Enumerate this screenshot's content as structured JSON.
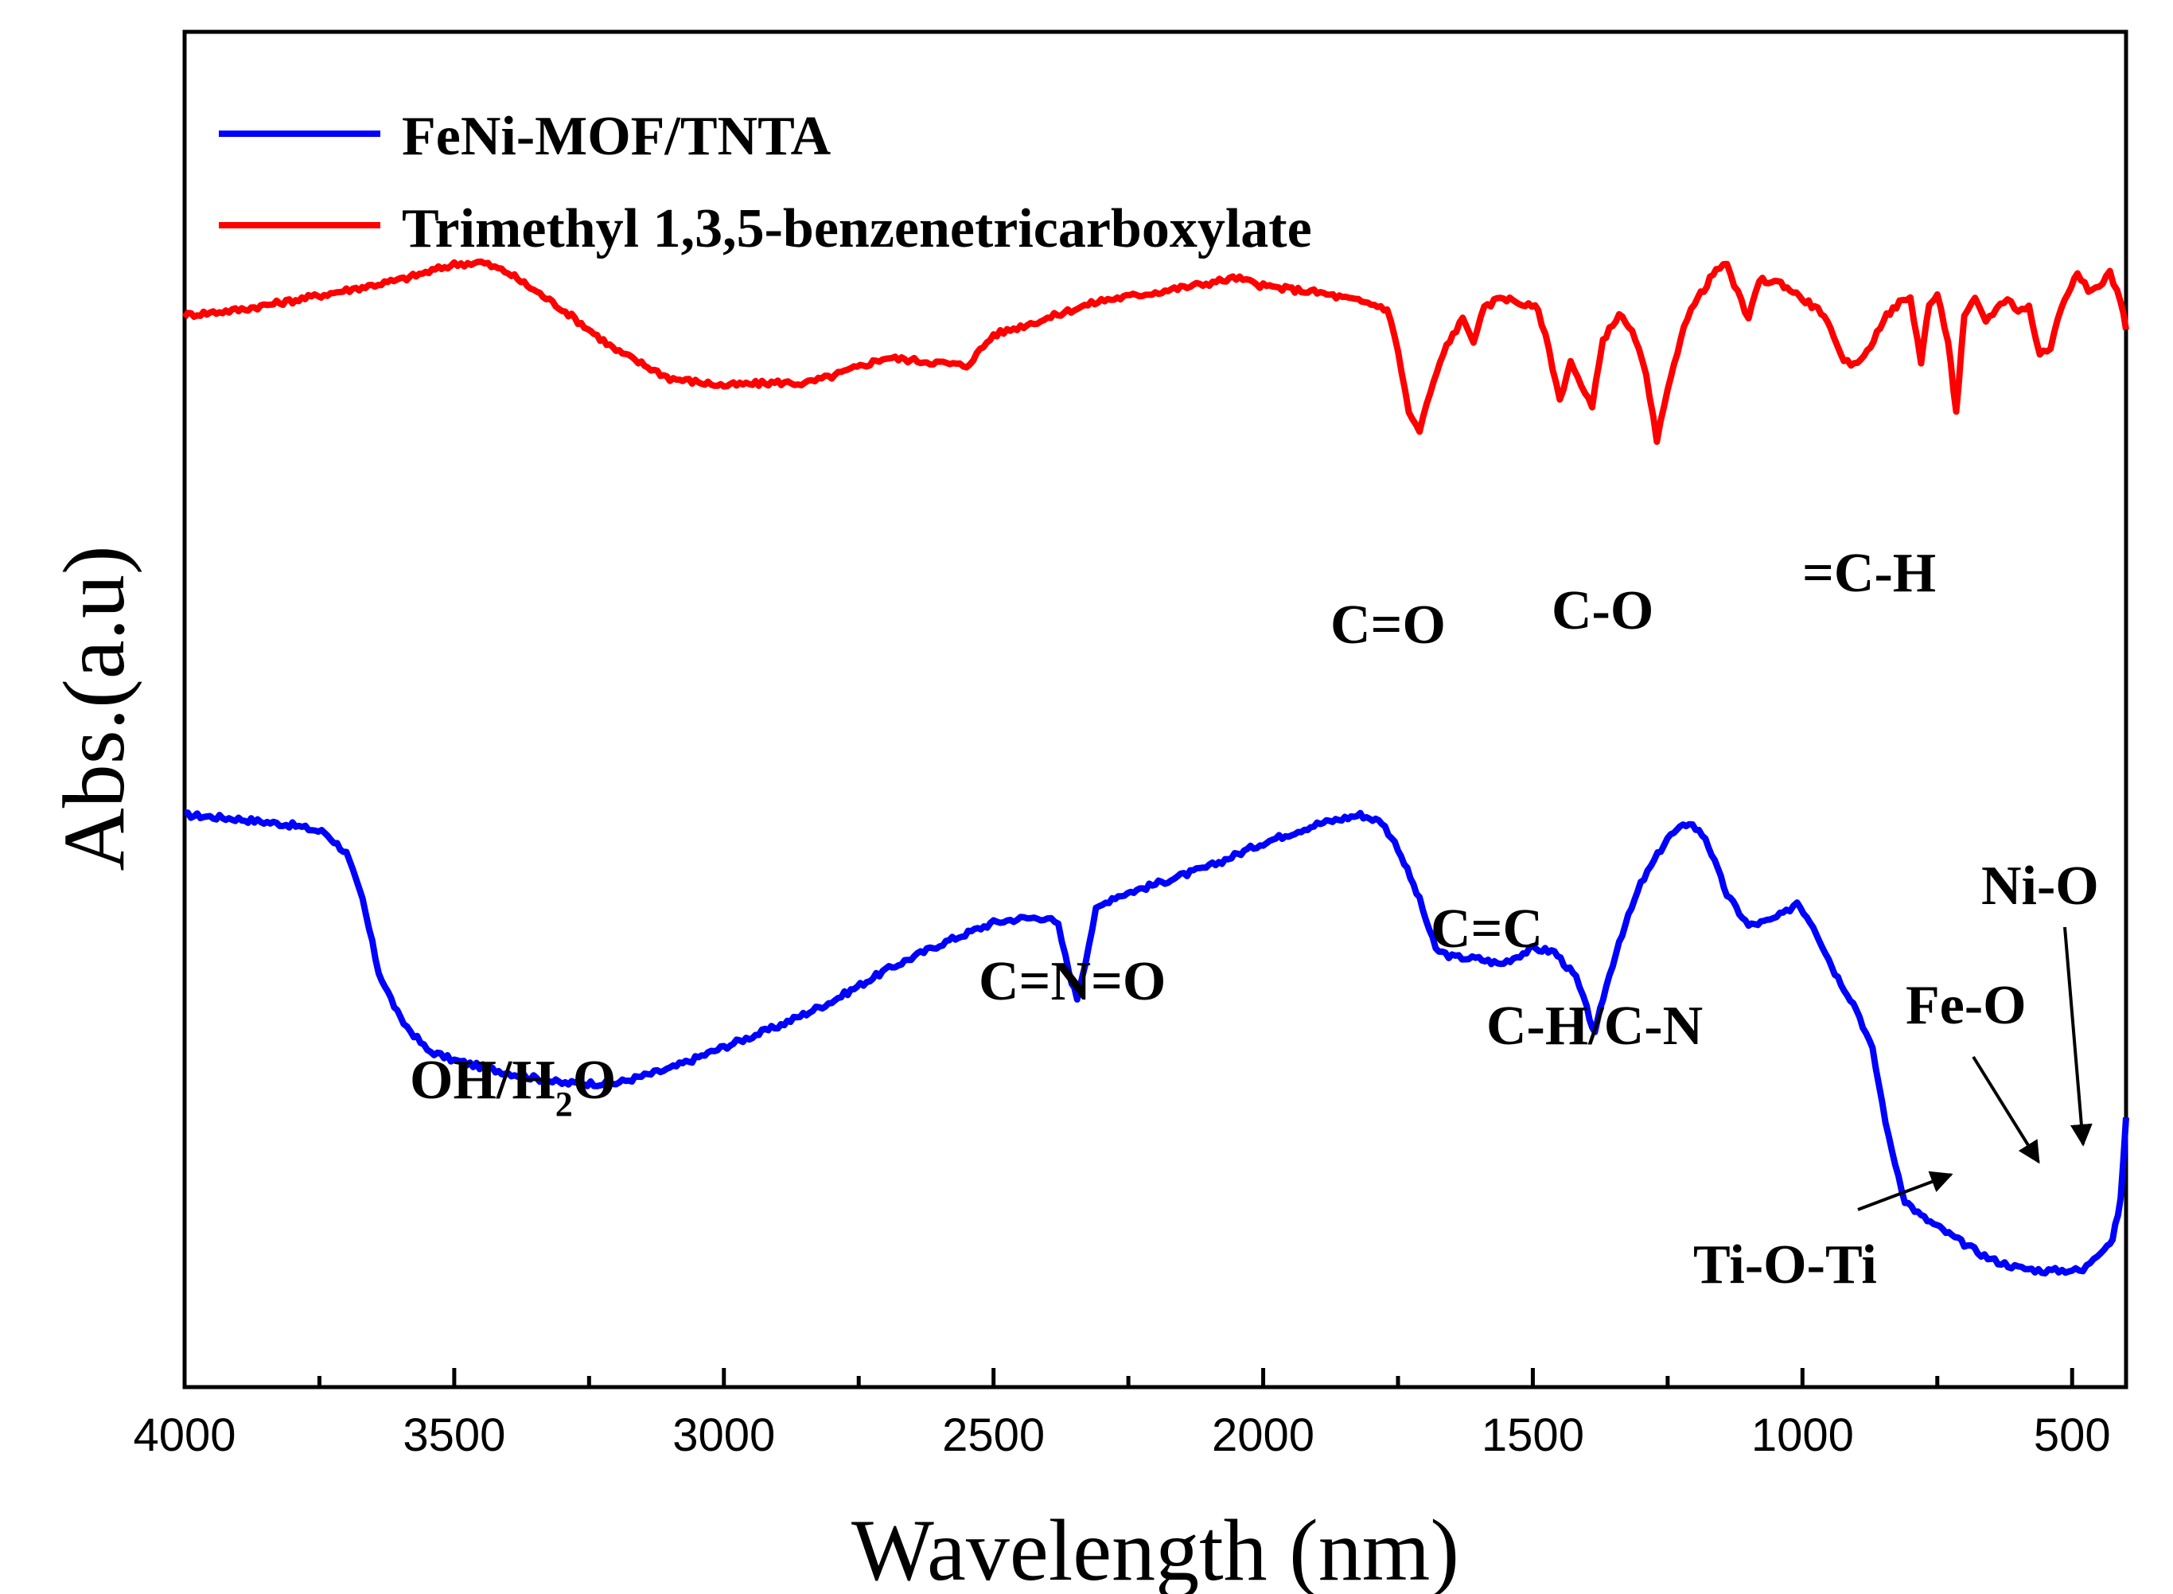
{
  "chart_data": {
    "type": "line",
    "title": "",
    "xlabel": "Wavelength (nm)",
    "ylabel": "Abs.(a.u)",
    "xlim": [
      4000,
      400
    ],
    "ylim": [
      0,
      100
    ],
    "x_ticks": [
      4000,
      3500,
      3000,
      2500,
      2000,
      1500,
      1000,
      500
    ],
    "x_tick_labels": [
      "4000",
      "3500",
      "3000",
      "2500",
      "2000",
      "1500",
      "1000",
      "500"
    ],
    "y_ticks_shown": false,
    "legend_position": "top-left",
    "series": [
      {
        "name": "FeNi-MOF/TNTA",
        "color": "#0000ff",
        "points": [
          [
            4000,
            85.2
          ],
          [
            3900,
            84.8
          ],
          [
            3800,
            84.2
          ],
          [
            3740,
            83.5
          ],
          [
            3700,
            81.5
          ],
          [
            3670,
            77
          ],
          [
            3640,
            70
          ],
          [
            3600,
            65.5
          ],
          [
            3550,
            62.5
          ],
          [
            3500,
            61.5
          ],
          [
            3400,
            60.3
          ],
          [
            3300,
            59.3
          ],
          [
            3200,
            59.3
          ],
          [
            3100,
            60.7
          ],
          [
            3000,
            62.8
          ],
          [
            2900,
            64.8
          ],
          [
            2800,
            67.2
          ],
          [
            2700,
            70.2
          ],
          [
            2600,
            72.7
          ],
          [
            2500,
            74.8
          ],
          [
            2450,
            75.2
          ],
          [
            2400,
            75.3
          ],
          [
            2380,
            74.5
          ],
          [
            2360,
            70
          ],
          [
            2345,
            67.5
          ],
          [
            2330,
            71
          ],
          [
            2310,
            76
          ],
          [
            2280,
            77.2
          ],
          [
            2200,
            78.5
          ],
          [
            2100,
            80.2
          ],
          [
            2000,
            82.5
          ],
          [
            1900,
            84.3
          ],
          [
            1820,
            85.2
          ],
          [
            1780,
            84.5
          ],
          [
            1750,
            82
          ],
          [
            1710,
            77
          ],
          [
            1680,
            72.2
          ],
          [
            1650,
            71.5
          ],
          [
            1600,
            71.3
          ],
          [
            1560,
            70.8
          ],
          [
            1500,
            72.3
          ],
          [
            1460,
            72
          ],
          [
            1420,
            69.5
          ],
          [
            1400,
            66.5
          ],
          [
            1385,
            64
          ],
          [
            1370,
            67.5
          ],
          [
            1340,
            73
          ],
          [
            1300,
            78.5
          ],
          [
            1250,
            83
          ],
          [
            1210,
            84.5
          ],
          [
            1180,
            83
          ],
          [
            1140,
            77.5
          ],
          [
            1100,
            74.5
          ],
          [
            1060,
            75
          ],
          [
            1030,
            75.8
          ],
          [
            1010,
            76.8
          ],
          [
            980,
            74.5
          ],
          [
            940,
            70
          ],
          [
            900,
            66.5
          ],
          [
            870,
            62.5
          ],
          [
            840,
            54
          ],
          [
            810,
            48
          ],
          [
            780,
            46.5
          ],
          [
            700,
            43.8
          ],
          [
            650,
            42.3
          ],
          [
            600,
            41.5
          ],
          [
            550,
            41.2
          ],
          [
            500,
            41.3
          ],
          [
            480,
            41.2
          ],
          [
            460,
            42.5
          ],
          [
            440,
            43.5
          ],
          [
            425,
            44.2
          ],
          [
            410,
            48
          ],
          [
            400,
            56
          ]
        ]
      },
      {
        "name": "Trimethyl 1,3,5-benzenetricarboxylate",
        "color": "#ff0000",
        "points": [
          [
            4000,
            133.4
          ],
          [
            3900,
            133.9
          ],
          [
            3800,
            134.8
          ],
          [
            3700,
            135.8
          ],
          [
            3600,
            136.8
          ],
          [
            3500,
            138.3
          ],
          [
            3450,
            138.5
          ],
          [
            3400,
            137.5
          ],
          [
            3300,
            134
          ],
          [
            3200,
            130
          ],
          [
            3100,
            127.3
          ],
          [
            3000,
            126.6
          ],
          [
            2900,
            126.9
          ],
          [
            2850,
            126.8
          ],
          [
            2800,
            127.5
          ],
          [
            2700,
            129.3
          ],
          [
            2600,
            128.8
          ],
          [
            2550,
            128.5
          ],
          [
            2500,
            131.5
          ],
          [
            2450,
            132.3
          ],
          [
            2400,
            133.1
          ],
          [
            2350,
            134
          ],
          [
            2300,
            134.8
          ],
          [
            2200,
            135.6
          ],
          [
            2100,
            136.5
          ],
          [
            2050,
            137
          ],
          [
            2000,
            136.2
          ],
          [
            1900,
            135.6
          ],
          [
            1800,
            134.5
          ],
          [
            1770,
            134
          ],
          [
            1750,
            130
          ],
          [
            1730,
            124
          ],
          [
            1710,
            122.2
          ],
          [
            1690,
            126
          ],
          [
            1660,
            130.5
          ],
          [
            1630,
            133
          ],
          [
            1610,
            131
          ],
          [
            1590,
            134
          ],
          [
            1560,
            135.2
          ],
          [
            1520,
            134.5
          ],
          [
            1490,
            134
          ],
          [
            1470,
            130
          ],
          [
            1450,
            125.2
          ],
          [
            1430,
            129
          ],
          [
            1410,
            126.5
          ],
          [
            1390,
            124.5
          ],
          [
            1370,
            131
          ],
          [
            1340,
            133.5
          ],
          [
            1310,
            131.2
          ],
          [
            1290,
            127.5
          ],
          [
            1270,
            121.3
          ],
          [
            1250,
            126
          ],
          [
            1220,
            132.5
          ],
          [
            1200,
            134.5
          ],
          [
            1160,
            137.8
          ],
          [
            1140,
            138.2
          ],
          [
            1120,
            135.5
          ],
          [
            1100,
            133
          ],
          [
            1080,
            136.8
          ],
          [
            1040,
            136.5
          ],
          [
            1000,
            135
          ],
          [
            960,
            133.5
          ],
          [
            930,
            129.5
          ],
          [
            910,
            128.5
          ],
          [
            880,
            129.8
          ],
          [
            850,
            133
          ],
          [
            820,
            134.6
          ],
          [
            800,
            135
          ],
          [
            780,
            129
          ],
          [
            765,
            134.5
          ],
          [
            750,
            135.2
          ],
          [
            730,
            131
          ],
          [
            715,
            124
          ],
          [
            700,
            133.2
          ],
          [
            680,
            134.9
          ],
          [
            660,
            132.9
          ],
          [
            640,
            134
          ],
          [
            620,
            135.1
          ],
          [
            600,
            133.8
          ],
          [
            580,
            134.2
          ],
          [
            560,
            129.6
          ],
          [
            540,
            130.3
          ],
          [
            520,
            134.2
          ],
          [
            490,
            137.7
          ],
          [
            470,
            135.6
          ],
          [
            450,
            136.2
          ],
          [
            430,
            137.5
          ],
          [
            410,
            134.8
          ],
          [
            400,
            132
          ]
        ]
      }
    ],
    "annotations": [
      {
        "text": "C=O",
        "series": "Trimethyl 1,3,5-benzenetricarboxylate"
      },
      {
        "text": "C-O",
        "series": "Trimethyl 1,3,5-benzenetricarboxylate"
      },
      {
        "text": "=C-H",
        "series": "Trimethyl 1,3,5-benzenetricarboxylate"
      },
      {
        "text": "OH/H",
        "subscript": "2",
        "suffix": "O",
        "series": "FeNi-MOF/TNTA"
      },
      {
        "text": "C=N=O",
        "series": "FeNi-MOF/TNTA"
      },
      {
        "text": "C=C",
        "series": "FeNi-MOF/TNTA"
      },
      {
        "text": "C-H/C-N",
        "series": "FeNi-MOF/TNTA"
      },
      {
        "text": "Ti-O-Ti",
        "series": "FeNi-MOF/TNTA",
        "arrow": true
      },
      {
        "text": "Fe-O",
        "series": "FeNi-MOF/TNTA",
        "arrow": true
      },
      {
        "text": "Ni-O",
        "series": "FeNi-MOF/TNTA",
        "arrow": true
      }
    ]
  }
}
